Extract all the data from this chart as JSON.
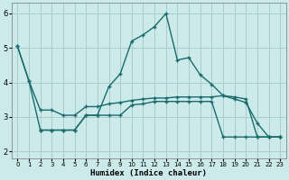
{
  "title": "",
  "xlabel": "Humidex (Indice chaleur)",
  "bg_color": "#cceaea",
  "grid_color": "#aacccc",
  "line_color": "#1a6b6b",
  "xlim": [
    -0.5,
    23.5
  ],
  "ylim": [
    1.8,
    6.3
  ],
  "xticks": [
    0,
    1,
    2,
    3,
    4,
    5,
    6,
    7,
    8,
    9,
    10,
    11,
    12,
    13,
    14,
    15,
    16,
    17,
    18,
    19,
    20,
    21,
    22,
    23
  ],
  "yticks": [
    2,
    3,
    4,
    5,
    6
  ],
  "line1_x": [
    0,
    1,
    2,
    3,
    4,
    5,
    6,
    7,
    8,
    9,
    10,
    11,
    12,
    13,
    14,
    15,
    16,
    17,
    18,
    19,
    20,
    21,
    22,
    23
  ],
  "line1_y": [
    5.05,
    4.05,
    3.2,
    3.2,
    3.05,
    3.05,
    3.3,
    3.3,
    3.38,
    3.42,
    3.48,
    3.52,
    3.55,
    3.55,
    3.58,
    3.58,
    3.58,
    3.58,
    3.62,
    3.58,
    3.52,
    2.42,
    2.42,
    2.42
  ],
  "line2_x": [
    0,
    1,
    2,
    3,
    4,
    5,
    6,
    7,
    8,
    9,
    10,
    11,
    12,
    13,
    14,
    15,
    16,
    17,
    18,
    19,
    20,
    21,
    22,
    23
  ],
  "line2_y": [
    5.05,
    4.05,
    2.62,
    2.62,
    2.62,
    2.62,
    3.05,
    3.05,
    3.88,
    4.25,
    5.2,
    5.38,
    5.62,
    6.0,
    4.65,
    4.72,
    4.22,
    3.95,
    3.62,
    3.52,
    3.42,
    2.82,
    2.42,
    2.42
  ],
  "line3_x": [
    2,
    3,
    4,
    5,
    6,
    7,
    8,
    9,
    10,
    11,
    12,
    13,
    14,
    15,
    16,
    17,
    18,
    19,
    20,
    21,
    22,
    23
  ],
  "line3_y": [
    2.62,
    2.62,
    2.62,
    2.62,
    3.05,
    3.05,
    3.05,
    3.05,
    3.35,
    3.38,
    3.45,
    3.45,
    3.45,
    3.45,
    3.45,
    3.45,
    2.42,
    2.42,
    2.42,
    2.42,
    2.42,
    2.42
  ],
  "marker": "+",
  "marker_size": 3,
  "linewidth": 1.0
}
